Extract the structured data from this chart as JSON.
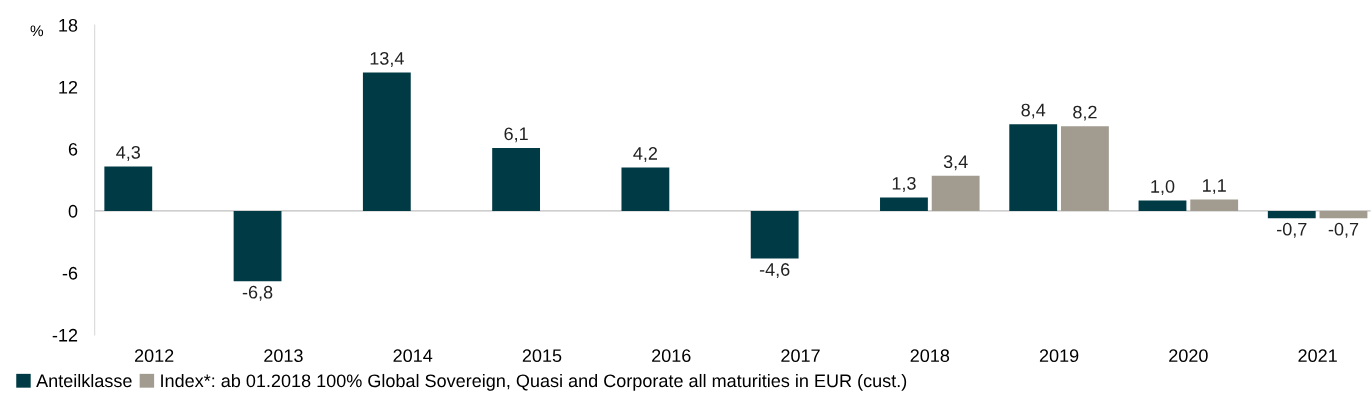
{
  "chart_data": {
    "type": "bar",
    "ylabel": "%",
    "categories": [
      "2012",
      "2013",
      "2014",
      "2015",
      "2016",
      "2017",
      "2018",
      "2019",
      "2020",
      "2021"
    ],
    "series": [
      {
        "name": "Anteilklasse",
        "color": "#003a45",
        "values": [
          4.3,
          -6.8,
          13.4,
          6.1,
          4.2,
          -4.6,
          1.3,
          8.4,
          1.0,
          -0.7
        ],
        "value_labels": [
          "4,3",
          "-6,8",
          "13,4",
          "6,1",
          "4,2",
          "-4,6",
          "1,3",
          "8,4",
          "1,0",
          "-0,7"
        ]
      },
      {
        "name": "Index*: ab 01.2018 100% Global Sovereign, Quasi and Corporate all maturities in EUR (cust.)",
        "color": "#a19b90",
        "values": [
          null,
          null,
          null,
          null,
          null,
          null,
          3.4,
          8.2,
          1.1,
          -0.7
        ],
        "value_labels": [
          null,
          null,
          null,
          null,
          null,
          null,
          "3,4",
          "8,2",
          "1,1",
          "-0,7"
        ]
      }
    ],
    "ylim": [
      -12,
      18
    ],
    "yticks": [
      {
        "value": -12,
        "label": "-12"
      },
      {
        "value": -6,
        "label": "-6"
      },
      0,
      6,
      12,
      18
    ],
    "ref_lines": [
      {
        "axis": "y",
        "value": 0,
        "color": "#bfbfbf"
      }
    ],
    "legend": "bottom"
  }
}
